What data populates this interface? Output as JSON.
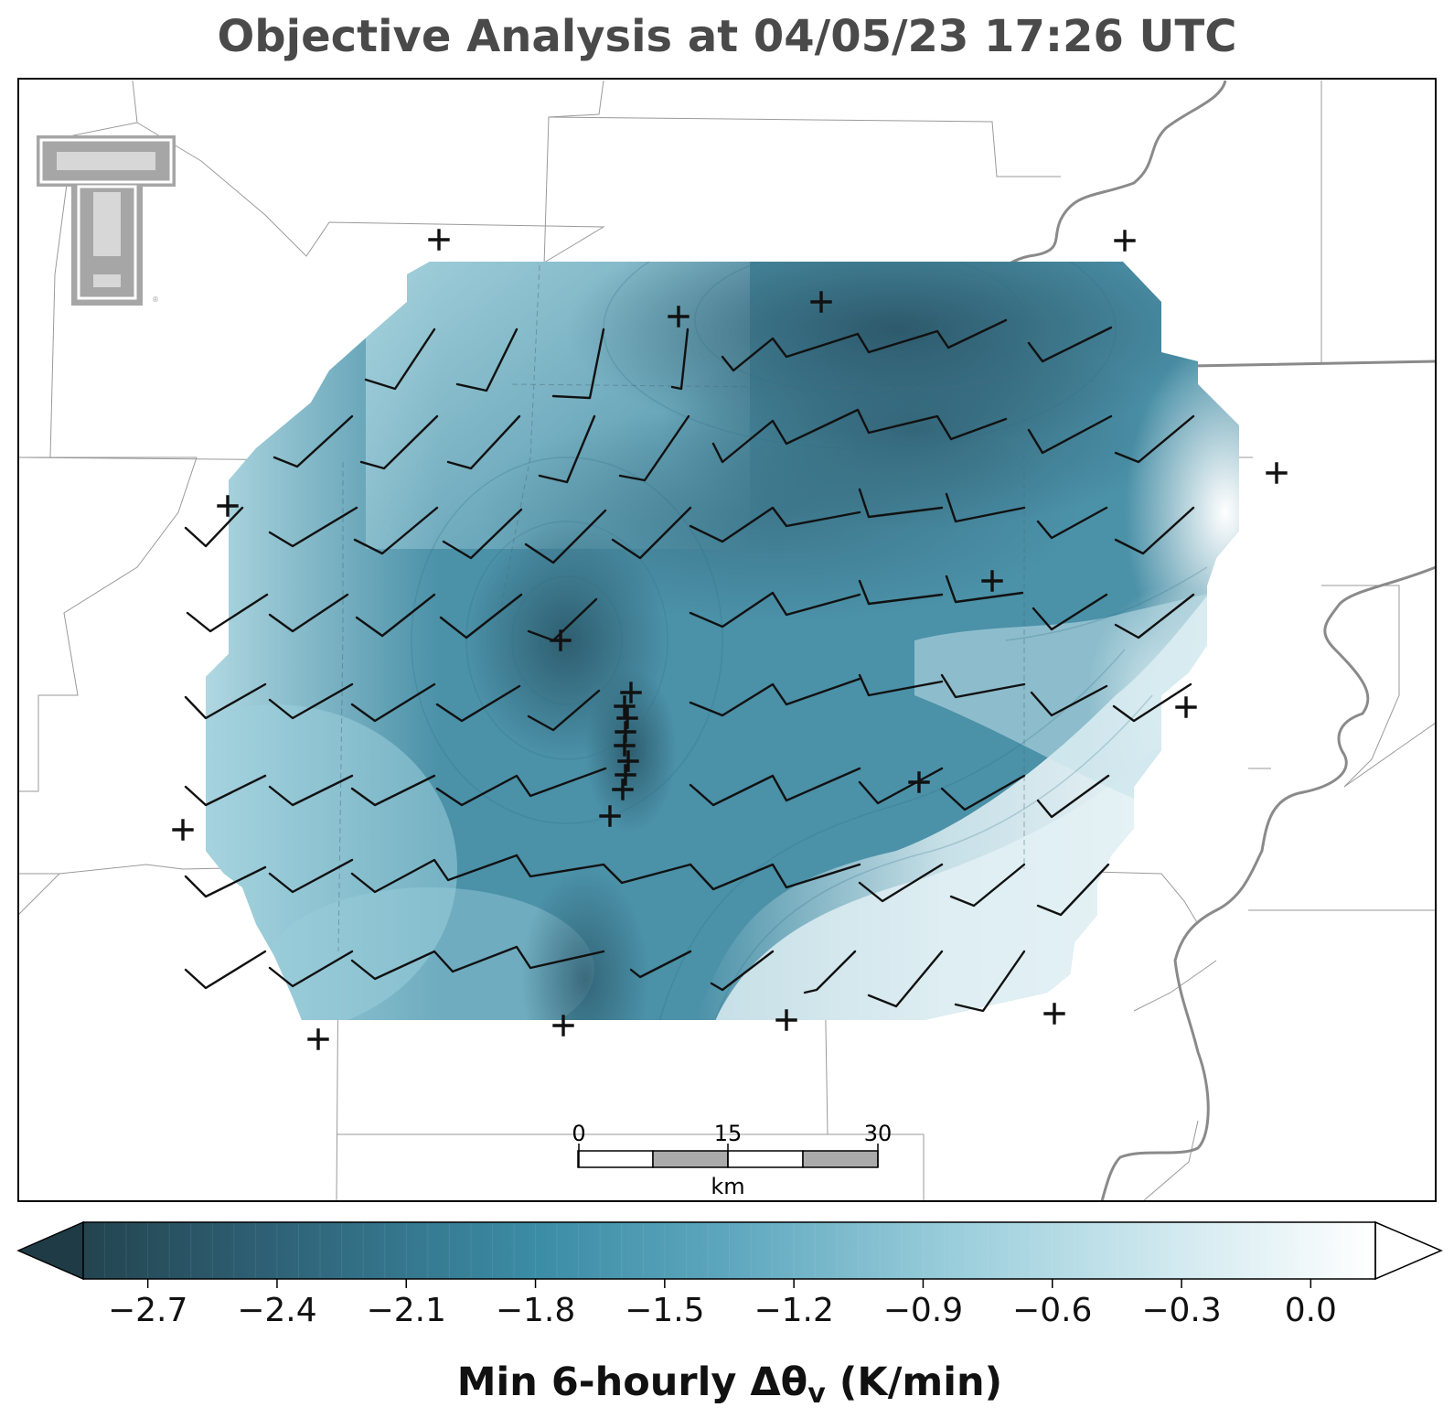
{
  "title": "Objective Analysis at 04/05/23 17:26 UTC",
  "colorbar": {
    "ticks": [
      {
        "value": -2.7,
        "label": "−2.7"
      },
      {
        "value": -2.4,
        "label": "−2.4"
      },
      {
        "value": -2.1,
        "label": "−2.1"
      },
      {
        "value": -1.8,
        "label": "−1.8"
      },
      {
        "value": -1.5,
        "label": "−1.5"
      },
      {
        "value": -1.2,
        "label": "−1.2"
      },
      {
        "value": -0.9,
        "label": "−0.9"
      },
      {
        "value": -0.6,
        "label": "−0.6"
      },
      {
        "value": -0.3,
        "label": "−0.3"
      },
      {
        "value": 0.0,
        "label": "0.0"
      }
    ],
    "min": -2.85,
    "max": 0.15,
    "extend": "both",
    "label_main": "Min 6-hourly Δθ",
    "label_sub": "v",
    "label_units": " (K/min)",
    "colors": [
      "#23444f",
      "#3b8ca5",
      "#9ccfdc",
      "#ffffff"
    ]
  },
  "scale_bar": {
    "labels": [
      "0",
      "15",
      "30"
    ],
    "units": "km"
  },
  "logo": {
    "name": "Texas Tech Double T",
    "text": "TT",
    "color": "#a6a6a6"
  },
  "map": {
    "field_colors": {
      "light": "#9ccfdc",
      "mid": "#4b91a8",
      "dark": "#2f6277",
      "white": "#ffffff"
    },
    "boundary_color": "#8a8a8a",
    "stations": "plus markers",
    "wind_barbs": "analysis grid"
  }
}
